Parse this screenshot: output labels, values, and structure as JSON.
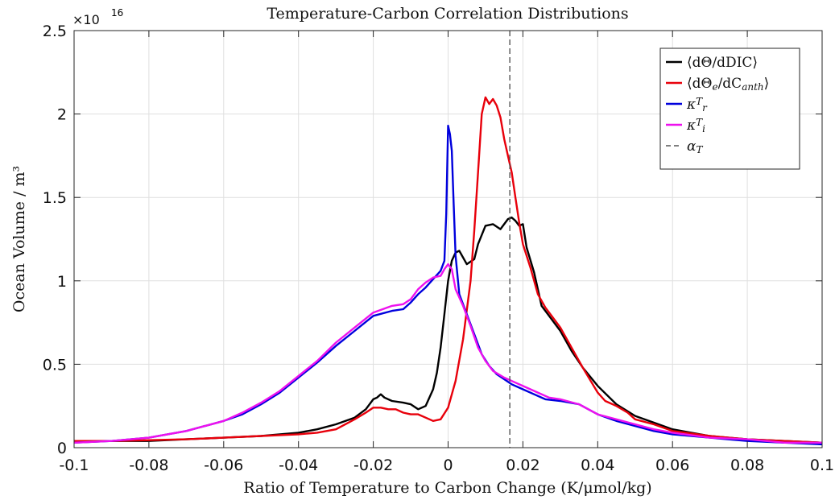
{
  "chart_data": {
    "type": "line",
    "title": "Temperature-Carbon Correlation Distributions",
    "xlabel": "Ratio of Temperature to Carbon Change (K/μmol/kg)",
    "ylabel": "Ocean Volume / m³",
    "xlim": [
      -0.1,
      0.1
    ],
    "ylim": [
      0,
      2.5
    ],
    "y_multiplier": "×10",
    "y_multiplier_exponent": "16",
    "grid": true,
    "legend_position": "top-right",
    "x_ticks": [
      "-0.1",
      "-0.08",
      "-0.06",
      "-0.04",
      "-0.02",
      "0",
      "0.02",
      "0.04",
      "0.06",
      "0.08",
      "0.1"
    ],
    "y_ticks": [
      "0",
      "0.5",
      "1",
      "1.5",
      "2",
      "2.5"
    ],
    "vline": {
      "name": "α_T",
      "x": 0.0165,
      "color": "#555555",
      "style": "dashed"
    },
    "series": [
      {
        "name": "⟨dΘ/dDIC⟩",
        "color": "#000000",
        "points": [
          [
            -0.1,
            0.04
          ],
          [
            -0.09,
            0.04
          ],
          [
            -0.08,
            0.04
          ],
          [
            -0.07,
            0.05
          ],
          [
            -0.06,
            0.06
          ],
          [
            -0.05,
            0.07
          ],
          [
            -0.04,
            0.09
          ],
          [
            -0.035,
            0.11
          ],
          [
            -0.03,
            0.14
          ],
          [
            -0.025,
            0.18
          ],
          [
            -0.022,
            0.23
          ],
          [
            -0.02,
            0.29
          ],
          [
            -0.019,
            0.3
          ],
          [
            -0.018,
            0.32
          ],
          [
            -0.017,
            0.3
          ],
          [
            -0.015,
            0.28
          ],
          [
            -0.012,
            0.27
          ],
          [
            -0.01,
            0.26
          ],
          [
            -0.008,
            0.23
          ],
          [
            -0.006,
            0.25
          ],
          [
            -0.004,
            0.35
          ],
          [
            -0.003,
            0.45
          ],
          [
            -0.002,
            0.6
          ],
          [
            -0.001,
            0.8
          ],
          [
            0,
            1.0
          ],
          [
            0.001,
            1.12
          ],
          [
            0.002,
            1.17
          ],
          [
            0.003,
            1.18
          ],
          [
            0.005,
            1.1
          ],
          [
            0.007,
            1.13
          ],
          [
            0.008,
            1.22
          ],
          [
            0.01,
            1.33
          ],
          [
            0.012,
            1.34
          ],
          [
            0.014,
            1.31
          ],
          [
            0.016,
            1.37
          ],
          [
            0.017,
            1.38
          ],
          [
            0.018,
            1.36
          ],
          [
            0.019,
            1.33
          ],
          [
            0.02,
            1.34
          ],
          [
            0.021,
            1.2
          ],
          [
            0.023,
            1.05
          ],
          [
            0.025,
            0.85
          ],
          [
            0.027,
            0.79
          ],
          [
            0.03,
            0.7
          ],
          [
            0.033,
            0.58
          ],
          [
            0.036,
            0.48
          ],
          [
            0.04,
            0.37
          ],
          [
            0.045,
            0.26
          ],
          [
            0.05,
            0.19
          ],
          [
            0.055,
            0.15
          ],
          [
            0.06,
            0.11
          ],
          [
            0.065,
            0.09
          ],
          [
            0.07,
            0.07
          ],
          [
            0.08,
            0.05
          ],
          [
            0.09,
            0.04
          ],
          [
            0.1,
            0.03
          ]
        ]
      },
      {
        "name": "⟨dΘ_e/dC_anth⟩",
        "color": "#e8000b",
        "points": [
          [
            -0.1,
            0.04
          ],
          [
            -0.09,
            0.04
          ],
          [
            -0.08,
            0.045
          ],
          [
            -0.07,
            0.05
          ],
          [
            -0.06,
            0.06
          ],
          [
            -0.05,
            0.07
          ],
          [
            -0.04,
            0.08
          ],
          [
            -0.035,
            0.09
          ],
          [
            -0.03,
            0.11
          ],
          [
            -0.025,
            0.17
          ],
          [
            -0.022,
            0.21
          ],
          [
            -0.02,
            0.24
          ],
          [
            -0.018,
            0.24
          ],
          [
            -0.016,
            0.23
          ],
          [
            -0.014,
            0.23
          ],
          [
            -0.012,
            0.21
          ],
          [
            -0.01,
            0.2
          ],
          [
            -0.008,
            0.2
          ],
          [
            -0.006,
            0.18
          ],
          [
            -0.004,
            0.16
          ],
          [
            -0.002,
            0.17
          ],
          [
            0,
            0.24
          ],
          [
            0.002,
            0.4
          ],
          [
            0.004,
            0.65
          ],
          [
            0.006,
            1.0
          ],
          [
            0.007,
            1.3
          ],
          [
            0.008,
            1.65
          ],
          [
            0.009,
            2.0
          ],
          [
            0.01,
            2.1
          ],
          [
            0.011,
            2.06
          ],
          [
            0.012,
            2.09
          ],
          [
            0.013,
            2.05
          ],
          [
            0.014,
            1.98
          ],
          [
            0.015,
            1.85
          ],
          [
            0.016,
            1.75
          ],
          [
            0.017,
            1.65
          ],
          [
            0.018,
            1.5
          ],
          [
            0.019,
            1.35
          ],
          [
            0.02,
            1.22
          ],
          [
            0.022,
            1.08
          ],
          [
            0.024,
            0.92
          ],
          [
            0.026,
            0.84
          ],
          [
            0.028,
            0.78
          ],
          [
            0.03,
            0.72
          ],
          [
            0.033,
            0.6
          ],
          [
            0.036,
            0.48
          ],
          [
            0.04,
            0.33
          ],
          [
            0.042,
            0.28
          ],
          [
            0.045,
            0.25
          ],
          [
            0.048,
            0.21
          ],
          [
            0.05,
            0.17
          ],
          [
            0.055,
            0.14
          ],
          [
            0.06,
            0.1
          ],
          [
            0.07,
            0.07
          ],
          [
            0.08,
            0.05
          ],
          [
            0.09,
            0.04
          ],
          [
            0.1,
            0.03
          ]
        ]
      },
      {
        "name": "κ_r^T",
        "color": "#0000dd",
        "points": [
          [
            -0.1,
            0.03
          ],
          [
            -0.09,
            0.04
          ],
          [
            -0.08,
            0.06
          ],
          [
            -0.07,
            0.1
          ],
          [
            -0.06,
            0.16
          ],
          [
            -0.055,
            0.2
          ],
          [
            -0.05,
            0.26
          ],
          [
            -0.045,
            0.33
          ],
          [
            -0.04,
            0.42
          ],
          [
            -0.035,
            0.51
          ],
          [
            -0.03,
            0.61
          ],
          [
            -0.025,
            0.7
          ],
          [
            -0.02,
            0.79
          ],
          [
            -0.015,
            0.82
          ],
          [
            -0.012,
            0.83
          ],
          [
            -0.01,
            0.87
          ],
          [
            -0.008,
            0.92
          ],
          [
            -0.006,
            0.96
          ],
          [
            -0.004,
            1.01
          ],
          [
            -0.002,
            1.06
          ],
          [
            -0.001,
            1.12
          ],
          [
            -0.0005,
            1.4
          ],
          [
            0,
            1.93
          ],
          [
            0.0005,
            1.88
          ],
          [
            0.001,
            1.78
          ],
          [
            0.0015,
            1.45
          ],
          [
            0.002,
            1.15
          ],
          [
            0.003,
            0.92
          ],
          [
            0.005,
            0.8
          ],
          [
            0.007,
            0.68
          ],
          [
            0.009,
            0.56
          ],
          [
            0.011,
            0.49
          ],
          [
            0.013,
            0.44
          ],
          [
            0.015,
            0.41
          ],
          [
            0.017,
            0.38
          ],
          [
            0.02,
            0.35
          ],
          [
            0.023,
            0.32
          ],
          [
            0.026,
            0.29
          ],
          [
            0.03,
            0.28
          ],
          [
            0.035,
            0.26
          ],
          [
            0.04,
            0.2
          ],
          [
            0.045,
            0.16
          ],
          [
            0.05,
            0.13
          ],
          [
            0.055,
            0.1
          ],
          [
            0.06,
            0.08
          ],
          [
            0.07,
            0.06
          ],
          [
            0.08,
            0.04
          ],
          [
            0.09,
            0.03
          ],
          [
            0.1,
            0.02
          ]
        ]
      },
      {
        "name": "κ_i^T",
        "color": "#ee11ee",
        "points": [
          [
            -0.1,
            0.03
          ],
          [
            -0.09,
            0.04
          ],
          [
            -0.08,
            0.06
          ],
          [
            -0.07,
            0.1
          ],
          [
            -0.06,
            0.16
          ],
          [
            -0.055,
            0.21
          ],
          [
            -0.05,
            0.27
          ],
          [
            -0.045,
            0.34
          ],
          [
            -0.04,
            0.43
          ],
          [
            -0.035,
            0.52
          ],
          [
            -0.03,
            0.63
          ],
          [
            -0.025,
            0.72
          ],
          [
            -0.02,
            0.81
          ],
          [
            -0.015,
            0.85
          ],
          [
            -0.012,
            0.86
          ],
          [
            -0.01,
            0.89
          ],
          [
            -0.008,
            0.95
          ],
          [
            -0.006,
            0.99
          ],
          [
            -0.004,
            1.02
          ],
          [
            -0.002,
            1.03
          ],
          [
            -0.001,
            1.07
          ],
          [
            0,
            1.1
          ],
          [
            0.001,
            1.07
          ],
          [
            0.002,
            0.95
          ],
          [
            0.004,
            0.85
          ],
          [
            0.006,
            0.73
          ],
          [
            0.008,
            0.6
          ],
          [
            0.01,
            0.52
          ],
          [
            0.012,
            0.46
          ],
          [
            0.015,
            0.42
          ],
          [
            0.018,
            0.39
          ],
          [
            0.021,
            0.36
          ],
          [
            0.024,
            0.33
          ],
          [
            0.027,
            0.3
          ],
          [
            0.03,
            0.29
          ],
          [
            0.035,
            0.26
          ],
          [
            0.04,
            0.2
          ],
          [
            0.045,
            0.17
          ],
          [
            0.05,
            0.14
          ],
          [
            0.055,
            0.11
          ],
          [
            0.06,
            0.09
          ],
          [
            0.07,
            0.06
          ],
          [
            0.08,
            0.05
          ],
          [
            0.09,
            0.03
          ],
          [
            0.1,
            0.03
          ]
        ]
      }
    ]
  }
}
